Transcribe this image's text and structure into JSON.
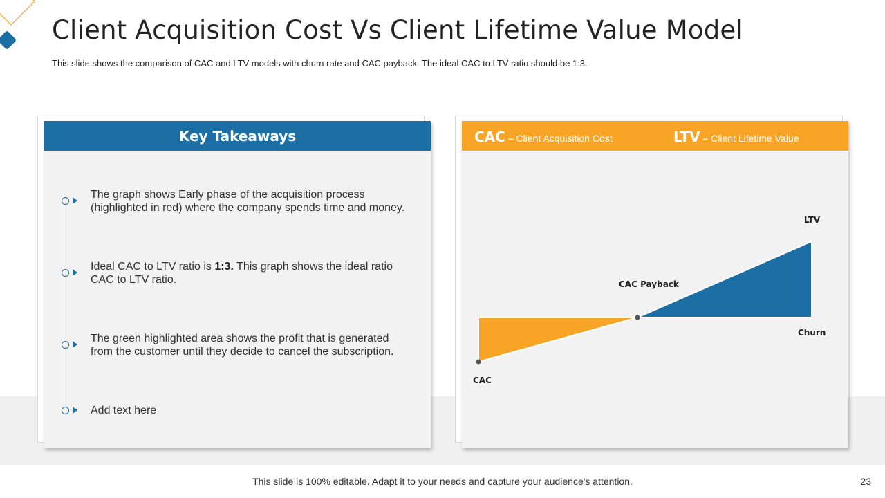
{
  "slide": {
    "title": "Client Acquisition Cost Vs Client Lifetime Value Model",
    "subtitle": "This slide shows the comparison of CAC and LTV models with churn rate and CAC payback. The ideal CAC to LTV ratio should be 1:3.",
    "footer": "This slide is 100% editable. Adapt it to your needs and capture your audience's attention.",
    "page_number": "23"
  },
  "takeaways": {
    "header": "Key Takeaways",
    "items": [
      {
        "line1": "The graph shows Early phase of the acquisition process",
        "line2": "(highlighted in red) where the company spends time and money."
      },
      {
        "pre": "Ideal CAC to LTV ratio is ",
        "bold": "1:3.",
        "post": " This graph shows the ideal ratio",
        "line2": "CAC to LTV ratio."
      },
      {
        "line1": "The green highlighted area shows the profit that is generated",
        "line2": "from the customer until they decide to cancel the subscription."
      },
      {
        "line1": "Add text here"
      }
    ]
  },
  "chart": {
    "header": {
      "cac_abbr": "CAC",
      "cac_dash": " – ",
      "cac_full": "Client Acquisition Cost",
      "ltv_abbr": "LTV",
      "ltv_dash": " – ",
      "ltv_full": "Client Lifetime Value"
    },
    "labels": {
      "cac": "CAC",
      "cac_payback": "CAC Payback",
      "ltv": "LTV",
      "churn": "Churn"
    },
    "colors": {
      "cac_area": "#f8a527",
      "ltv_area": "#1b6fa5",
      "header": "#f8a527"
    }
  },
  "colors": {
    "accent_blue": "#1b6fa5",
    "accent_orange": "#f8a527"
  }
}
